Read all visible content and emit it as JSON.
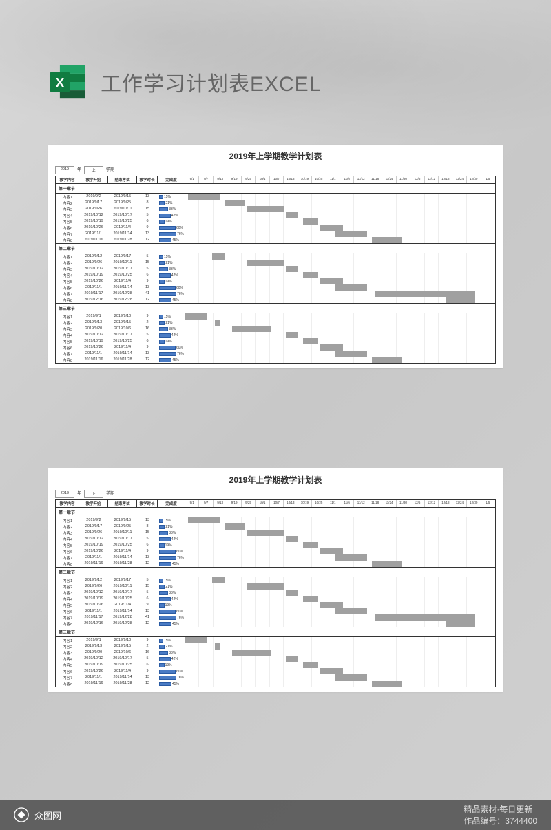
{
  "header": {
    "title": "工作学习计划表EXCEL",
    "icon_color_dark": "#1a7243",
    "icon_color_light": "#21a366",
    "icon_letter": "X"
  },
  "sheet": {
    "title": "2019年上学期教学计划表",
    "filter": {
      "year": "2019",
      "year_label": "年",
      "term": "上",
      "term_label": "学期"
    },
    "columns": [
      "教学内容",
      "教学开始",
      "结束考试",
      "教学时长",
      "完成度"
    ],
    "timeline": [
      "9/1",
      "9/7",
      "9/13",
      "9/19",
      "9/25",
      "10/1",
      "10/7",
      "10/13",
      "10/19",
      "10/25",
      "11/1",
      "11/6",
      "11/12",
      "11/18",
      "11/24",
      "11/30",
      "12/6",
      "12/12",
      "12/18",
      "12/24",
      "12/30",
      "1/5"
    ],
    "timeline_start_days": 0,
    "timeline_total_days": 126,
    "sections": [
      {
        "name": "第一章节",
        "rows": [
          {
            "name": "内容1",
            "start": "2019/9/2",
            "end": "2019/9/15",
            "dur": 13,
            "pct": 15,
            "offset": 1,
            "len": 13
          },
          {
            "name": "内容2",
            "start": "2019/9/17",
            "end": "2019/9/25",
            "dur": 8,
            "pct": 21,
            "offset": 16,
            "len": 8
          },
          {
            "name": "内容3",
            "start": "2019/9/26",
            "end": "2019/10/11",
            "dur": 15,
            "pct": 33,
            "offset": 25,
            "len": 15
          },
          {
            "name": "内容4",
            "start": "2019/10/12",
            "end": "2019/10/17",
            "dur": 5,
            "pct": 42,
            "offset": 41,
            "len": 5
          },
          {
            "name": "内容5",
            "start": "2019/10/19",
            "end": "2019/10/25",
            "dur": 6,
            "pct": 19,
            "offset": 48,
            "len": 6
          },
          {
            "name": "内容6",
            "start": "2019/10/26",
            "end": "2019/11/4",
            "dur": 9,
            "pct": 60,
            "offset": 55,
            "len": 9
          },
          {
            "name": "内容7",
            "start": "2019/11/1",
            "end": "2019/11/14",
            "dur": 13,
            "pct": 76,
            "offset": 61,
            "len": 13
          },
          {
            "name": "内容8",
            "start": "2019/11/16",
            "end": "2019/11/28",
            "dur": 12,
            "pct": 45,
            "offset": 76,
            "len": 12
          }
        ]
      },
      {
        "name": "第二章节",
        "rows": [
          {
            "name": "内容1",
            "start": "2019/9/12",
            "end": "2019/9/17",
            "dur": 5,
            "pct": 15,
            "offset": 11,
            "len": 5
          },
          {
            "name": "内容2",
            "start": "2019/9/26",
            "end": "2019/10/11",
            "dur": 15,
            "pct": 21,
            "offset": 25,
            "len": 15
          },
          {
            "name": "内容3",
            "start": "2019/10/12",
            "end": "2019/10/17",
            "dur": 5,
            "pct": 33,
            "offset": 41,
            "len": 5
          },
          {
            "name": "内容4",
            "start": "2019/10/19",
            "end": "2019/10/25",
            "dur": 6,
            "pct": 42,
            "offset": 48,
            "len": 6
          },
          {
            "name": "内容5",
            "start": "2019/10/26",
            "end": "2019/11/4",
            "dur": 9,
            "pct": 19,
            "offset": 55,
            "len": 9
          },
          {
            "name": "内容6",
            "start": "2019/11/1",
            "end": "2019/11/14",
            "dur": 13,
            "pct": 60,
            "offset": 61,
            "len": 13
          },
          {
            "name": "内容7",
            "start": "2019/11/17",
            "end": "2019/12/28",
            "dur": 41,
            "pct": 76,
            "offset": 77,
            "len": 41
          },
          {
            "name": "内容8",
            "start": "2019/12/16",
            "end": "2019/12/28",
            "dur": 12,
            "pct": 45,
            "offset": 106,
            "len": 12
          }
        ]
      },
      {
        "name": "第三章节",
        "rows": [
          {
            "name": "内容1",
            "start": "2019/9/1",
            "end": "2019/9/10",
            "dur": 9,
            "pct": 15,
            "offset": 0,
            "len": 9
          },
          {
            "name": "内容2",
            "start": "2019/9/13",
            "end": "2019/9/15",
            "dur": 2,
            "pct": 21,
            "offset": 12,
            "len": 2
          },
          {
            "name": "内容3",
            "start": "2019/9/20",
            "end": "2019/10/6",
            "dur": 16,
            "pct": 33,
            "offset": 19,
            "len": 16
          },
          {
            "name": "内容4",
            "start": "2019/10/12",
            "end": "2019/10/17",
            "dur": 5,
            "pct": 42,
            "offset": 41,
            "len": 5
          },
          {
            "name": "内容5",
            "start": "2019/10/19",
            "end": "2019/10/25",
            "dur": 6,
            "pct": 19,
            "offset": 48,
            "len": 6
          },
          {
            "name": "内容6",
            "start": "2019/10/26",
            "end": "2019/11/4",
            "dur": 9,
            "pct": 60,
            "offset": 55,
            "len": 9
          },
          {
            "name": "内容7",
            "start": "2019/11/1",
            "end": "2019/11/14",
            "dur": 13,
            "pct": 76,
            "offset": 61,
            "len": 13
          },
          {
            "name": "内容8",
            "start": "2019/11/16",
            "end": "2019/11/28",
            "dur": 12,
            "pct": 45,
            "offset": 76,
            "len": 12
          }
        ]
      }
    ]
  },
  "footer": {
    "brand": "众图网",
    "tagline": "精品素材·每日更新",
    "id_label": "作品编号：",
    "id_value": "3744400"
  },
  "colors": {
    "progress_fill": "#4a7bc4",
    "gantt_fill": "#a0a0a0",
    "sheet_bg": "#ffffff",
    "border": "#333333"
  }
}
